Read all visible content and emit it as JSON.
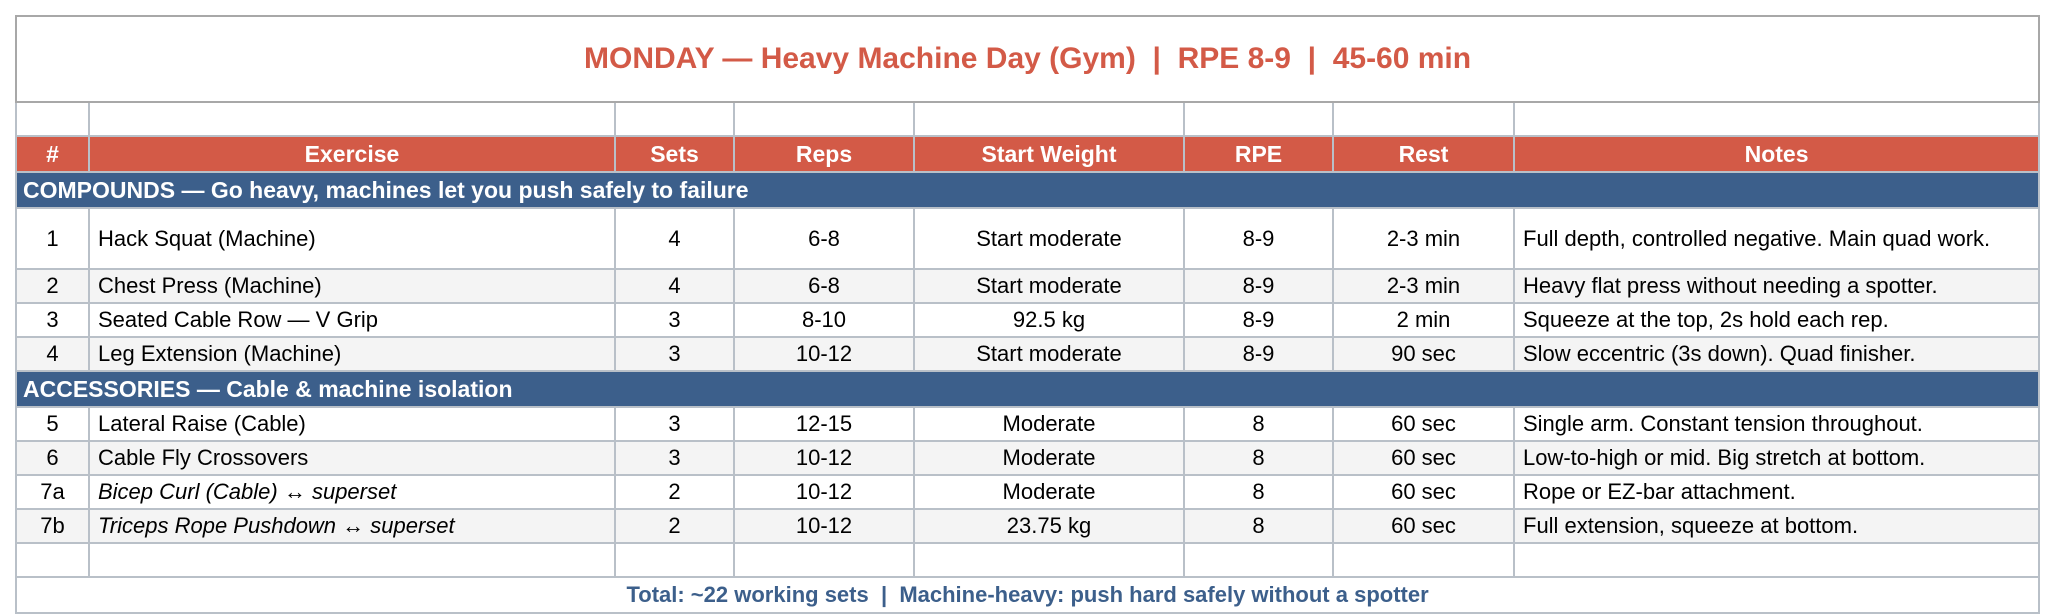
{
  "title": "MONDAY — Heavy Machine Day (Gym)  |  RPE 8-9  |  45-60 min",
  "headers": [
    "#",
    "Exercise",
    "Sets",
    "Reps",
    "Start Weight",
    "RPE",
    "Rest",
    "Notes"
  ],
  "sections": [
    {
      "label": "COMPOUNDS — Go heavy, machines let you push safely to failure",
      "rows": [
        {
          "num": "1",
          "exercise": "Hack Squat (Machine)",
          "sets": "4",
          "reps": "6-8",
          "weight": "Start moderate",
          "rpe": "8-9",
          "rest": "2-3 min",
          "notes": "Full depth, controlled negative. Main quad work."
        },
        {
          "num": "2",
          "exercise": "Chest Press (Machine)",
          "sets": "4",
          "reps": "6-8",
          "weight": "Start moderate",
          "rpe": "8-9",
          "rest": "2-3 min",
          "notes": "Heavy flat press without needing a spotter."
        },
        {
          "num": "3",
          "exercise": "Seated Cable Row — V Grip",
          "sets": "3",
          "reps": "8-10",
          "weight": "92.5 kg",
          "rpe": "8-9",
          "rest": "2 min",
          "notes": "Squeeze at the top, 2s hold each rep."
        },
        {
          "num": "4",
          "exercise": "Leg Extension (Machine)",
          "sets": "3",
          "reps": "10-12",
          "weight": "Start moderate",
          "rpe": "8-9",
          "rest": "90 sec",
          "notes": "Slow eccentric (3s down). Quad finisher."
        }
      ]
    },
    {
      "label": "ACCESSORIES — Cable & machine isolation",
      "rows": [
        {
          "num": "5",
          "exercise": "Lateral Raise (Cable)",
          "sets": "3",
          "reps": "12-15",
          "weight": "Moderate",
          "rpe": "8",
          "rest": "60 sec",
          "notes": "Single arm. Constant tension throughout."
        },
        {
          "num": "6",
          "exercise": "Cable Fly Crossovers",
          "sets": "3",
          "reps": "10-12",
          "weight": "Moderate",
          "rpe": "8",
          "rest": "60 sec",
          "notes": "Low-to-high or mid. Big stretch at bottom."
        },
        {
          "num": "7a",
          "exercise": "Bicep Curl (Cable)  ↔ superset",
          "sets": "2",
          "reps": "10-12",
          "weight": "Moderate",
          "rpe": "8",
          "rest": "60 sec",
          "notes": "Rope or EZ-bar attachment."
        },
        {
          "num": "7b",
          "exercise": "Triceps Rope Pushdown  ↔ superset",
          "sets": "2",
          "reps": "10-12",
          "weight": "23.75 kg",
          "rpe": "8",
          "rest": "60 sec",
          "notes": "Full extension, squeeze at bottom."
        }
      ]
    }
  ],
  "footer": "Total: ~22 working sets  |  Machine-heavy: push hard safely without a spotter",
  "colors": {
    "header": "#d35a47",
    "section": "#3c5f8b",
    "footer_text": "#3c5f8b"
  }
}
